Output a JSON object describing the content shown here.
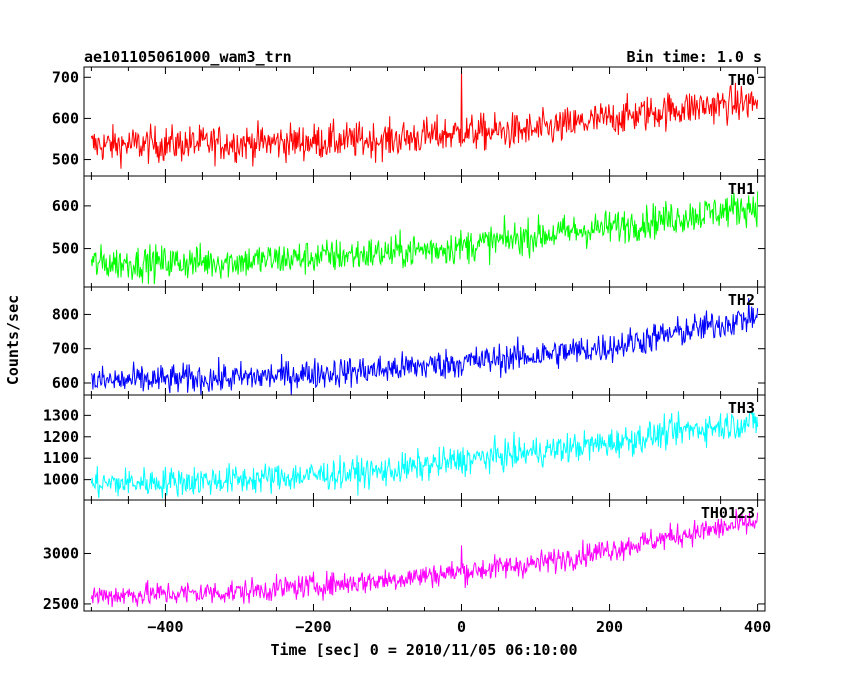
{
  "header": {
    "title": "ae101105061000_wam3_trn",
    "bin_time": "Bin time: 1.0 s"
  },
  "axes": {
    "xlabel": "Time [sec] 0 = 2010/11/05 06:10:00",
    "ylabel": "Counts/sec"
  },
  "chart_data": {
    "type": "line",
    "x_range": [
      -510,
      410
    ],
    "x_ticks": [
      -400,
      -200,
      0,
      200,
      400
    ],
    "x_tick_labels": [
      "−400",
      "−200",
      "0",
      "200",
      "400"
    ],
    "series": [
      {
        "name": "TH0",
        "color": "#ff0000",
        "ylim": [
          460,
          725
        ],
        "y_ticks": [
          500,
          600,
          700
        ],
        "trend": {
          "x": [
            -500,
            -300,
            -100,
            0,
            100,
            200,
            300,
            400
          ],
          "y": [
            535,
            540,
            548,
            565,
            570,
            600,
            625,
            640
          ]
        },
        "noise_amplitude": 22,
        "spikes": [
          {
            "x": 0,
            "y": 725
          }
        ]
      },
      {
        "name": "TH1",
        "color": "#00ff00",
        "ylim": [
          410,
          670
        ],
        "y_ticks": [
          500,
          600
        ],
        "trend": {
          "x": [
            -500,
            -300,
            -100,
            0,
            100,
            200,
            300,
            400
          ],
          "y": [
            465,
            470,
            490,
            505,
            530,
            550,
            575,
            600
          ]
        },
        "noise_amplitude": 20,
        "spikes": []
      },
      {
        "name": "TH2",
        "color": "#0000ff",
        "ylim": [
          565,
          880
        ],
        "y_ticks": [
          600,
          700,
          800
        ],
        "trend": {
          "x": [
            -500,
            -300,
            -100,
            0,
            100,
            200,
            300,
            400
          ],
          "y": [
            605,
            615,
            640,
            660,
            680,
            705,
            750,
            795
          ]
        },
        "noise_amplitude": 22,
        "spikes": []
      },
      {
        "name": "TH3",
        "color": "#00ffff",
        "ylim": [
          905,
          1395
        ],
        "y_ticks": [
          1000,
          1100,
          1200,
          1300
        ],
        "trend": {
          "x": [
            -500,
            -300,
            -100,
            0,
            100,
            200,
            300,
            400
          ],
          "y": [
            980,
            1000,
            1040,
            1090,
            1130,
            1170,
            1230,
            1270
          ]
        },
        "noise_amplitude": 35,
        "spikes": []
      },
      {
        "name": "TH0123",
        "color": "#ff00ff",
        "ylim": [
          2430,
          3530
        ],
        "y_ticks": [
          2500,
          3000
        ],
        "trend": {
          "x": [
            -500,
            -300,
            -100,
            0,
            100,
            200,
            300,
            400
          ],
          "y": [
            2580,
            2620,
            2740,
            2820,
            2900,
            3040,
            3190,
            3310
          ]
        },
        "noise_amplitude": 60,
        "spikes": [
          {
            "x": 0,
            "y": 3080
          }
        ]
      }
    ]
  }
}
